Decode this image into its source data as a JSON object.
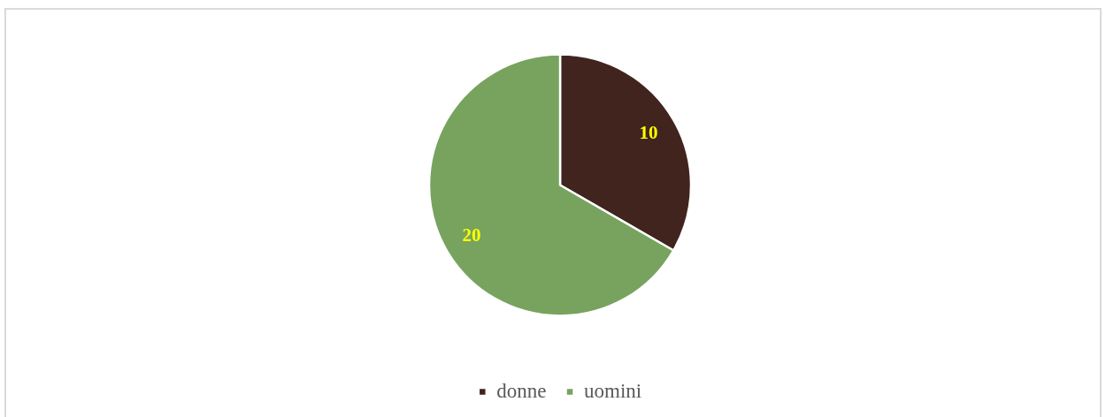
{
  "chart_data": {
    "type": "pie",
    "categories": [
      "donne",
      "uomini"
    ],
    "values": [
      10,
      20
    ],
    "colors": [
      "#41241e",
      "#77a35f"
    ],
    "data_labels": true,
    "legend": "bottom"
  }
}
